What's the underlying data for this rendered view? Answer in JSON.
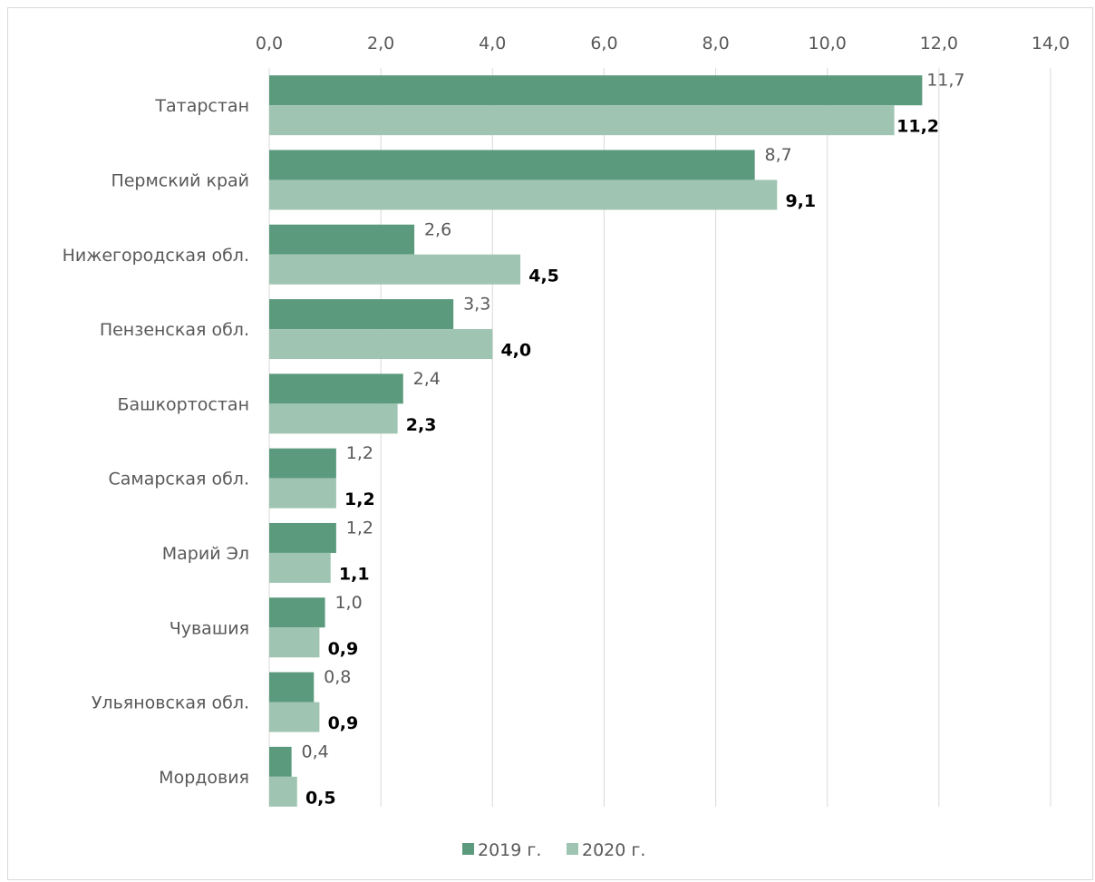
{
  "chart_data": {
    "type": "bar",
    "orientation": "horizontal",
    "categories": [
      "Татарстан",
      "Пермский край",
      "Нижегородская обл.",
      "Пензенская обл.",
      "Башкортостан",
      "Самарская обл.",
      "Марий Эл",
      "Чувашия",
      "Ульяновская обл.",
      "Мордовия"
    ],
    "series": [
      {
        "name": "2019 г.",
        "color": "#5b9a7d",
        "values": [
          11.7,
          8.7,
          2.6,
          3.3,
          2.4,
          1.2,
          1.2,
          1.0,
          0.8,
          0.4
        ],
        "labels": [
          "11,7",
          "8,7",
          "2,6",
          "3,3",
          "2,4",
          "1,2",
          "1,2",
          "1,0",
          "0,8",
          "0,4"
        ]
      },
      {
        "name": "2020 г.",
        "color": "#9fc5b2",
        "values": [
          11.2,
          9.1,
          4.5,
          4.0,
          2.3,
          1.2,
          1.1,
          0.9,
          0.9,
          0.5
        ],
        "labels": [
          "11,2",
          "9,1",
          "4,5",
          "4,0",
          "2,3",
          "1,2",
          "1,1",
          "0,9",
          "0,9",
          "0,5"
        ]
      }
    ],
    "xlim": [
      0,
      14
    ],
    "ticks": [
      0,
      2,
      4,
      6,
      8,
      10,
      12,
      14
    ],
    "tick_labels": [
      "0,0",
      "2,0",
      "4,0",
      "6,0",
      "8,0",
      "10,0",
      "12,0",
      "14,0"
    ],
    "axis_position": "top",
    "grid": true,
    "legend_position": "bottom"
  }
}
